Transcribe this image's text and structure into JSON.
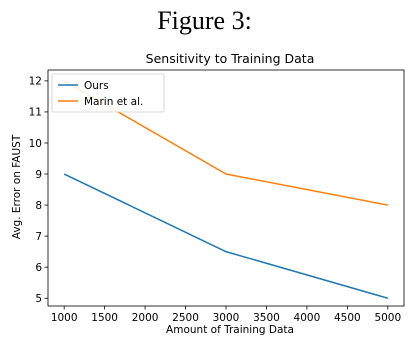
{
  "figure": {
    "caption": "Figure 3:"
  },
  "chart_data": {
    "type": "line",
    "title": "Sensitivity to Training Data",
    "xlabel": "Amount of Training Data",
    "ylabel": "Avg. Error on FAUST",
    "x": [
      1000,
      3000,
      5000
    ],
    "series": [
      {
        "name": "Ours",
        "values": [
          9.0,
          6.5,
          5.0
        ],
        "color": "#1f77b4"
      },
      {
        "name": "Marin et al.",
        "values": [
          12.0,
          9.0,
          8.0
        ],
        "color": "#ff7f0e"
      }
    ],
    "xlim": [
      800,
      5200
    ],
    "ylim": [
      4.75,
      12.35
    ],
    "xticks": [
      1000,
      1500,
      2000,
      2500,
      3000,
      3500,
      4000,
      4500,
      5000
    ],
    "yticks": [
      5,
      6,
      7,
      8,
      9,
      10,
      11,
      12
    ],
    "grid": false,
    "legend_position": "top-left"
  }
}
